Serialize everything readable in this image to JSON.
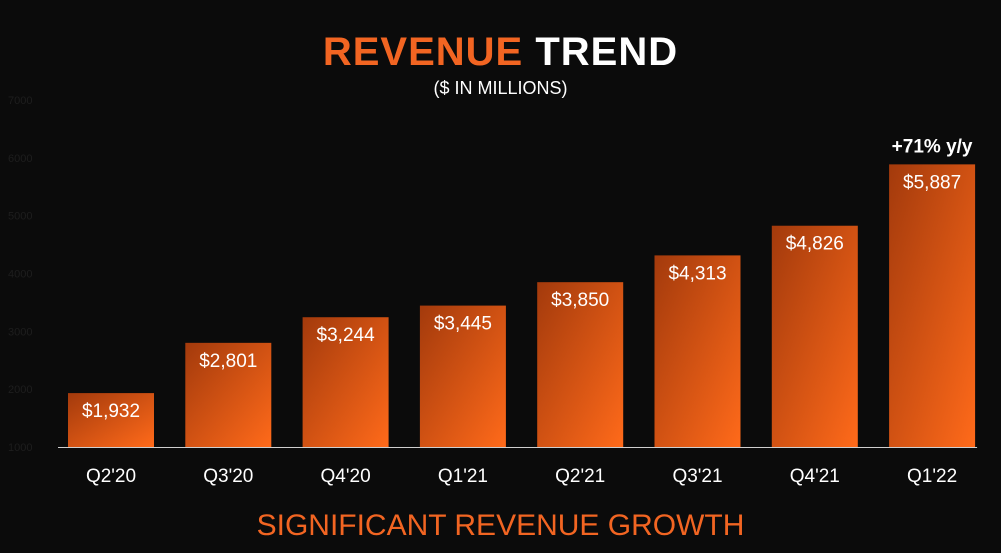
{
  "title": {
    "part1": "REVENUE",
    "part2": "TREND"
  },
  "subtitle": "($ IN MILLIONS)",
  "footer": "SIGNIFICANT REVENUE GROWTH",
  "colors": {
    "accent": "#f26522",
    "bar_dark": "#a33a0c",
    "bar_light": "#ff6a1a",
    "background": "#0b0b0b"
  },
  "chart_data": {
    "type": "bar",
    "title": "REVENUE TREND",
    "subtitle": "($ IN MILLIONS)",
    "categories": [
      "Q2'20",
      "Q3'20",
      "Q4'20",
      "Q1'21",
      "Q2'21",
      "Q3'21",
      "Q4'21",
      "Q1'22"
    ],
    "values": [
      1932,
      2801,
      3244,
      3445,
      3850,
      4313,
      4826,
      5887
    ],
    "value_labels": [
      "$1,932",
      "$2,801",
      "$3,244",
      "$3,445",
      "$3,850",
      "$4,313",
      "$4,826",
      "$5,887"
    ],
    "yticks": [
      1000,
      2000,
      3000,
      4000,
      5000,
      6000,
      7000
    ],
    "ylim": [
      1000,
      7000
    ],
    "annotation": {
      "text": "+71% y/y",
      "category": "Q1'22"
    },
    "xlabel": "",
    "ylabel": ""
  }
}
